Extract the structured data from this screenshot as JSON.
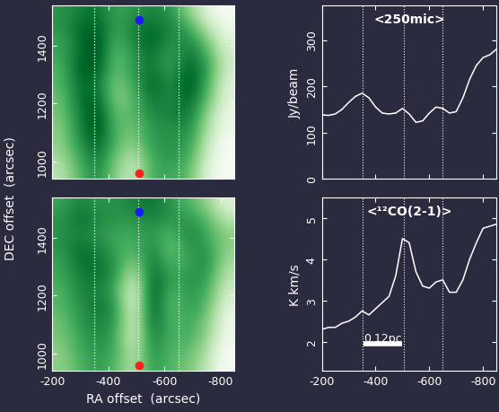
{
  "chart_data": [
    {
      "type": "heatmap",
      "xlim": [
        -200,
        -850
      ],
      "ylim": [
        940,
        1540
      ],
      "xticks": [
        -200,
        -400,
        -600,
        -800
      ],
      "yticks": [
        1000,
        1200,
        1400
      ],
      "tick_labels": "y",
      "vlines": [
        -350,
        -505,
        -650
      ],
      "points": [
        {
          "x": -510,
          "y": 1490,
          "color": "#1a1aff"
        },
        {
          "x": -510,
          "y": 960,
          "color": "#ff2020"
        }
      ],
      "cells": [
        [
          0.5,
          0.55,
          0.6,
          0.45,
          0.5,
          0.55,
          0.5,
          0.3,
          0.1,
          0.0
        ],
        [
          0.5,
          0.6,
          0.65,
          0.45,
          0.55,
          0.6,
          0.55,
          0.45,
          0.2,
          0.05
        ],
        [
          0.45,
          0.6,
          0.7,
          0.4,
          0.55,
          0.65,
          0.5,
          0.55,
          0.35,
          0.1
        ],
        [
          0.45,
          0.6,
          0.7,
          0.35,
          0.5,
          0.6,
          0.45,
          0.6,
          0.45,
          0.15
        ],
        [
          0.4,
          0.65,
          0.65,
          0.35,
          0.5,
          0.6,
          0.45,
          0.65,
          0.5,
          0.15
        ],
        [
          0.4,
          0.6,
          0.6,
          0.3,
          0.45,
          0.65,
          0.5,
          0.7,
          0.45,
          0.1
        ],
        [
          0.35,
          0.6,
          0.65,
          0.3,
          0.4,
          0.6,
          0.5,
          0.65,
          0.4,
          0.1
        ],
        [
          0.35,
          0.55,
          0.7,
          0.35,
          0.4,
          0.55,
          0.55,
          0.6,
          0.3,
          0.05
        ],
        [
          0.3,
          0.55,
          0.7,
          0.4,
          0.35,
          0.5,
          0.5,
          0.55,
          0.25,
          0.05
        ],
        [
          0.3,
          0.5,
          0.65,
          0.4,
          0.3,
          0.5,
          0.5,
          0.5,
          0.2,
          0.0
        ],
        [
          0.25,
          0.45,
          0.6,
          0.35,
          0.2,
          0.45,
          0.5,
          0.45,
          0.15,
          0.0
        ],
        [
          0.2,
          0.4,
          0.55,
          0.3,
          0.15,
          0.45,
          0.45,
          0.4,
          0.1,
          0.0
        ]
      ]
    },
    {
      "type": "line",
      "title": "<250mic>",
      "y_label": "Jy/beam",
      "xlim": [
        -200,
        -850
      ],
      "ylim": [
        0,
        375
      ],
      "xticks": [
        -200,
        -400,
        -600,
        -800
      ],
      "yticks": [
        0,
        100,
        200,
        300
      ],
      "tick_labels": "y",
      "color": "#ffffff",
      "vlines": [
        -350,
        -505,
        -650
      ],
      "x": [
        -200,
        -225,
        -250,
        -275,
        -300,
        -325,
        -350,
        -375,
        -400,
        -425,
        -450,
        -475,
        -500,
        -525,
        -550,
        -575,
        -600,
        -625,
        -650,
        -675,
        -700,
        -725,
        -750,
        -775,
        -800,
        -825,
        -850
      ],
      "values": [
        138,
        137,
        140,
        150,
        165,
        178,
        185,
        175,
        155,
        142,
        140,
        142,
        152,
        140,
        122,
        125,
        142,
        155,
        152,
        142,
        145,
        175,
        215,
        245,
        262,
        268,
        280
      ]
    },
    {
      "type": "heatmap",
      "xlim": [
        -200,
        -850
      ],
      "ylim": [
        940,
        1540
      ],
      "xticks": [
        -200,
        -400,
        -600,
        -800
      ],
      "yticks": [
        1000,
        1200,
        1400
      ],
      "x_label": "RA offset  (arcsec)",
      "y_label": "DEC offset  (arcsec)",
      "vlines": [
        -350,
        -505,
        -650
      ],
      "points": [
        {
          "x": -510,
          "y": 1490,
          "color": "#1a1aff"
        },
        {
          "x": -510,
          "y": 960,
          "color": "#ff2020"
        }
      ],
      "cells": [
        [
          0.45,
          0.55,
          0.5,
          0.5,
          0.55,
          0.6,
          0.5,
          0.4,
          0.3,
          0.1
        ],
        [
          0.5,
          0.6,
          0.55,
          0.5,
          0.5,
          0.55,
          0.5,
          0.5,
          0.4,
          0.2
        ],
        [
          0.5,
          0.55,
          0.5,
          0.45,
          0.45,
          0.5,
          0.4,
          0.55,
          0.45,
          0.3
        ],
        [
          0.5,
          0.6,
          0.55,
          0.45,
          0.4,
          0.55,
          0.35,
          0.5,
          0.5,
          0.3
        ],
        [
          0.45,
          0.6,
          0.6,
          0.5,
          0.3,
          0.6,
          0.4,
          0.45,
          0.55,
          0.25
        ],
        [
          0.45,
          0.55,
          0.6,
          0.5,
          0.15,
          0.65,
          0.45,
          0.5,
          0.5,
          0.2
        ],
        [
          0.4,
          0.55,
          0.55,
          0.45,
          0.05,
          0.7,
          0.4,
          0.5,
          0.45,
          0.15
        ],
        [
          0.4,
          0.5,
          0.6,
          0.5,
          0.05,
          0.7,
          0.35,
          0.5,
          0.4,
          0.1
        ],
        [
          0.35,
          0.5,
          0.55,
          0.5,
          0.1,
          0.65,
          0.4,
          0.45,
          0.35,
          0.05
        ],
        [
          0.35,
          0.45,
          0.55,
          0.45,
          0.1,
          0.6,
          0.4,
          0.45,
          0.3,
          0.05
        ],
        [
          0.3,
          0.45,
          0.5,
          0.45,
          0.15,
          0.55,
          0.4,
          0.4,
          0.25,
          0.0
        ],
        [
          0.3,
          0.4,
          0.5,
          0.4,
          0.2,
          0.5,
          0.4,
          0.35,
          0.2,
          0.0
        ]
      ]
    },
    {
      "type": "line",
      "title": "<¹²CO(2-1)>",
      "y_label": "K km/s",
      "xlim": [
        -200,
        -850
      ],
      "ylim": [
        1.3,
        5.5
      ],
      "xticks": [
        -200,
        -400,
        -600,
        -800
      ],
      "yticks": [
        2,
        3,
        4,
        5
      ],
      "color": "#ffffff",
      "vlines": [
        -350,
        -505,
        -650
      ],
      "scale_bar": {
        "label": "0.12pc",
        "x": [
          -355,
          -500
        ],
        "y": 1.95
      },
      "x": [
        -200,
        -225,
        -250,
        -275,
        -300,
        -325,
        -350,
        -375,
        -400,
        -425,
        -450,
        -475,
        -500,
        -525,
        -550,
        -575,
        -600,
        -625,
        -650,
        -675,
        -700,
        -725,
        -750,
        -775,
        -800,
        -825,
        -850
      ],
      "values": [
        2.3,
        2.35,
        2.35,
        2.45,
        2.5,
        2.6,
        2.75,
        2.65,
        2.8,
        2.95,
        3.1,
        3.6,
        4.5,
        4.4,
        3.7,
        3.35,
        3.3,
        3.45,
        3.5,
        3.2,
        3.2,
        3.5,
        4.0,
        4.4,
        4.75,
        4.8,
        4.85
      ]
    }
  ]
}
